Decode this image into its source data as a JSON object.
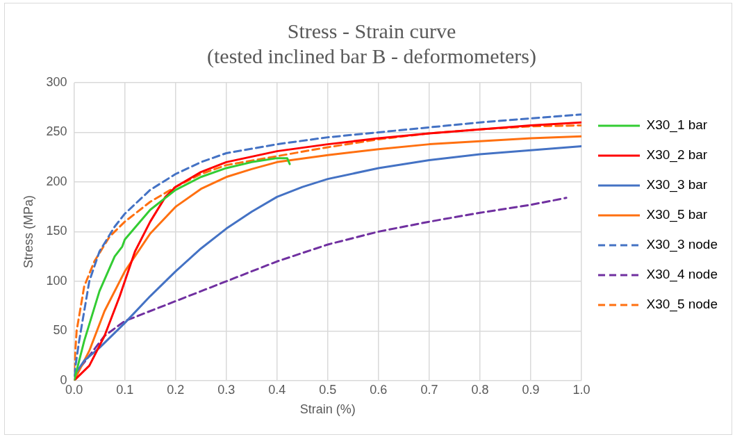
{
  "chart_data": {
    "type": "line",
    "title": "Stress - Strain curve",
    "subtitle": "(tested inclined bar B - deformometers)",
    "xlabel": "Strain (%)",
    "ylabel": "Stress (MPa)",
    "xlim": [
      0,
      1
    ],
    "xticks": [
      {
        "value": 0,
        "label": "0.0"
      },
      {
        "value": 0.1,
        "label": "0.1"
      },
      {
        "value": 0.2,
        "label": "0.2"
      },
      {
        "value": 0.3,
        "label": "0.3"
      },
      {
        "value": 0.4,
        "label": "0.4"
      },
      {
        "value": 0.5,
        "label": "0.5"
      },
      {
        "value": 0.6,
        "label": "0.6"
      },
      {
        "value": 0.7,
        "label": "0.7"
      },
      {
        "value": 0.8,
        "label": "0.8"
      },
      {
        "value": 0.9,
        "label": "0.9"
      },
      {
        "value": 1,
        "label": "1.0"
      }
    ],
    "ylim": [
      0,
      300
    ],
    "yticks": [
      0,
      50,
      100,
      150,
      200,
      250,
      300
    ],
    "grid": true,
    "legend": "right",
    "marker": "none",
    "series": [
      {
        "name": "X30_1 bar",
        "color": "#33cc33",
        "line_style": "solid",
        "x": [
          0,
          0.02,
          0.05,
          0.08,
          0.095,
          0.1,
          0.15,
          0.2,
          0.25,
          0.3,
          0.35,
          0.4,
          0.42,
          0.425
        ],
        "values": [
          0,
          40,
          90,
          125,
          135,
          142,
          172,
          192,
          205,
          214,
          220,
          224,
          224,
          218
        ]
      },
      {
        "name": "X30_2 bar",
        "color": "#ff0000",
        "line_style": "solid",
        "x": [
          0,
          0.03,
          0.06,
          0.09,
          0.12,
          0.15,
          0.18,
          0.2,
          0.25,
          0.3,
          0.4,
          0.5,
          0.6,
          0.7,
          0.8,
          0.9,
          1
        ],
        "values": [
          0,
          15,
          45,
          85,
          130,
          160,
          185,
          195,
          210,
          220,
          231,
          238,
          244,
          249,
          253,
          257,
          260
        ]
      },
      {
        "name": "X30_3 bar",
        "color": "#4472c4",
        "line_style": "solid",
        "x": [
          0,
          0.02,
          0.05,
          0.1,
          0.15,
          0.2,
          0.25,
          0.3,
          0.35,
          0.4,
          0.45,
          0.5,
          0.6,
          0.7,
          0.8,
          0.9,
          1
        ],
        "values": [
          5,
          20,
          33,
          58,
          85,
          110,
          133,
          153,
          170,
          185,
          195,
          203,
          214,
          222,
          228,
          232,
          236
        ]
      },
      {
        "name": "X30_5 bar",
        "color": "#ff7010",
        "line_style": "solid",
        "x": [
          0,
          0.03,
          0.06,
          0.1,
          0.15,
          0.2,
          0.25,
          0.3,
          0.35,
          0.4,
          0.5,
          0.6,
          0.7,
          0.8,
          0.9,
          1
        ],
        "values": [
          0,
          30,
          70,
          110,
          148,
          175,
          193,
          205,
          213,
          220,
          227,
          233,
          238,
          241,
          244,
          246
        ]
      },
      {
        "name": "X30_3 node",
        "color": "#4472c4",
        "line_style": "dashed",
        "x": [
          0,
          0.01,
          0.03,
          0.05,
          0.08,
          0.1,
          0.15,
          0.2,
          0.25,
          0.3,
          0.4,
          0.5,
          0.6,
          0.7,
          0.8,
          0.9,
          1
        ],
        "values": [
          5,
          40,
          100,
          130,
          155,
          168,
          192,
          208,
          220,
          229,
          238,
          245,
          250,
          255,
          260,
          264,
          268
        ]
      },
      {
        "name": "X30_4 node",
        "color": "#7030a0",
        "line_style": "dashed",
        "x": [
          0,
          0.03,
          0.06,
          0.1,
          0.2,
          0.3,
          0.4,
          0.5,
          0.6,
          0.7,
          0.8,
          0.9,
          0.97
        ],
        "values": [
          5,
          25,
          45,
          60,
          80,
          100,
          120,
          137,
          150,
          160,
          169,
          177,
          184
        ]
      },
      {
        "name": "X30_5 node",
        "color": "#ff7010",
        "line_style": "dashed",
        "x": [
          0,
          0.005,
          0.02,
          0.04,
          0.07,
          0.1,
          0.15,
          0.2,
          0.25,
          0.3,
          0.4,
          0.5,
          0.6,
          0.7,
          0.8,
          0.9,
          1
        ],
        "values": [
          10,
          50,
          95,
          120,
          145,
          160,
          180,
          195,
          208,
          217,
          226,
          235,
          243,
          249,
          253,
          256,
          257
        ]
      }
    ]
  }
}
